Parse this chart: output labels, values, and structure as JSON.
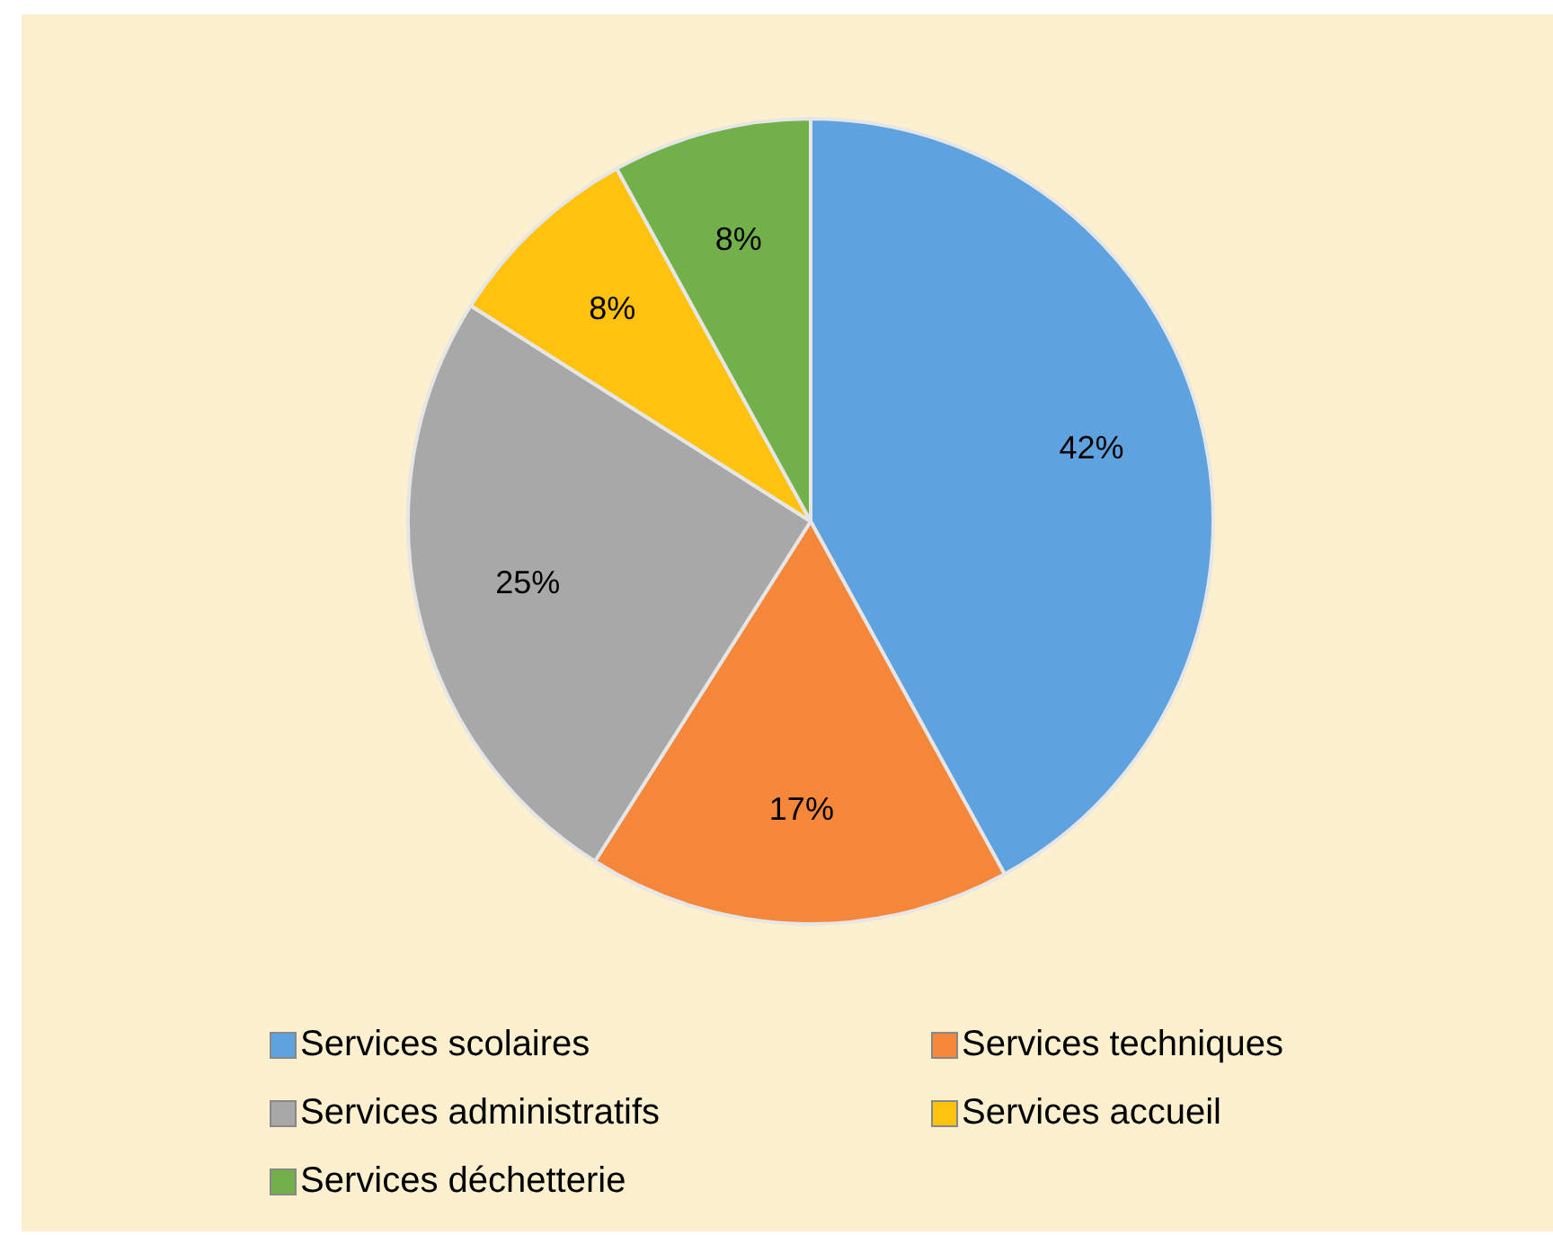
{
  "chart_data": {
    "type": "pie",
    "categories": [
      "Services scolaires",
      "Services techniques",
      "Services administratifs",
      "Services accueil",
      "Services déchetterie"
    ],
    "values": [
      42,
      17,
      25,
      8,
      8
    ],
    "colors": [
      "#5fa2e0",
      "#f5873a",
      "#a8a8a8",
      "#ffc20e",
      "#72b04a"
    ],
    "value_labels": [
      "42%",
      "17%",
      "25%",
      "8%",
      "8%"
    ],
    "legend": "bottom"
  }
}
